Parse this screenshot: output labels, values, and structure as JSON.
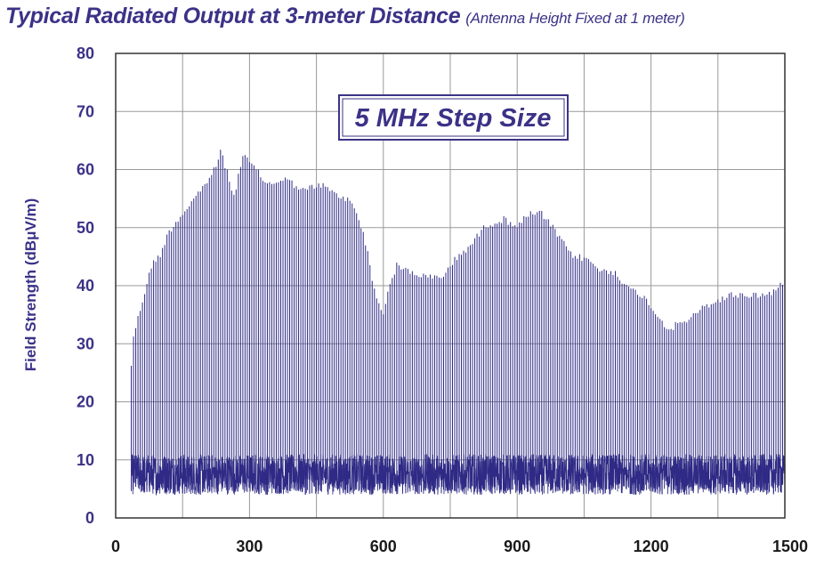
{
  "chart_data": {
    "type": "bar",
    "title": "Typical Radiated Output at 3-meter Distance",
    "subtitle": "(Antenna Height Fixed at 1 meter)",
    "xlabel": "",
    "ylabel": "Field Strength (dBμV/m)",
    "xlim": [
      0,
      1500
    ],
    "ylim": [
      0,
      80
    ],
    "x_ticks": [
      0,
      300,
      600,
      900,
      1200,
      1500
    ],
    "y_ticks": [
      0,
      10,
      20,
      30,
      40,
      50,
      60,
      70,
      80
    ],
    "grid": true,
    "annotation": "5 MHz Step Size",
    "step_size_mhz": 5,
    "x_start": 35,
    "x_end": 1500,
    "series_color": "#2e2a85",
    "noise_floor_range": [
      4,
      11
    ],
    "envelope_peaks": [
      {
        "x": 35,
        "y": 27
      },
      {
        "x": 40,
        "y": 32
      },
      {
        "x": 50,
        "y": 35
      },
      {
        "x": 60,
        "y": 38
      },
      {
        "x": 70,
        "y": 41
      },
      {
        "x": 80,
        "y": 44
      },
      {
        "x": 100,
        "y": 46
      },
      {
        "x": 120,
        "y": 50
      },
      {
        "x": 150,
        "y": 53
      },
      {
        "x": 180,
        "y": 56
      },
      {
        "x": 200,
        "y": 58
      },
      {
        "x": 225,
        "y": 61
      },
      {
        "x": 235,
        "y": 64
      },
      {
        "x": 250,
        "y": 60
      },
      {
        "x": 265,
        "y": 56
      },
      {
        "x": 285,
        "y": 63
      },
      {
        "x": 310,
        "y": 61
      },
      {
        "x": 340,
        "y": 58
      },
      {
        "x": 380,
        "y": 59
      },
      {
        "x": 420,
        "y": 57
      },
      {
        "x": 460,
        "y": 58
      },
      {
        "x": 500,
        "y": 56
      },
      {
        "x": 530,
        "y": 55
      },
      {
        "x": 555,
        "y": 50
      },
      {
        "x": 570,
        "y": 44
      },
      {
        "x": 585,
        "y": 38
      },
      {
        "x": 600,
        "y": 36
      },
      {
        "x": 615,
        "y": 41
      },
      {
        "x": 630,
        "y": 44
      },
      {
        "x": 660,
        "y": 43
      },
      {
        "x": 700,
        "y": 42
      },
      {
        "x": 730,
        "y": 42
      },
      {
        "x": 760,
        "y": 45
      },
      {
        "x": 800,
        "y": 48
      },
      {
        "x": 830,
        "y": 51
      },
      {
        "x": 870,
        "y": 52
      },
      {
        "x": 900,
        "y": 51
      },
      {
        "x": 930,
        "y": 53
      },
      {
        "x": 955,
        "y": 53
      },
      {
        "x": 985,
        "y": 50
      },
      {
        "x": 1020,
        "y": 46
      },
      {
        "x": 1060,
        "y": 45
      },
      {
        "x": 1090,
        "y": 43
      },
      {
        "x": 1120,
        "y": 43
      },
      {
        "x": 1150,
        "y": 40
      },
      {
        "x": 1180,
        "y": 39
      },
      {
        "x": 1210,
        "y": 36
      },
      {
        "x": 1240,
        "y": 33
      },
      {
        "x": 1260,
        "y": 34
      },
      {
        "x": 1290,
        "y": 35
      },
      {
        "x": 1320,
        "y": 37
      },
      {
        "x": 1350,
        "y": 38
      },
      {
        "x": 1380,
        "y": 39
      },
      {
        "x": 1420,
        "y": 39
      },
      {
        "x": 1460,
        "y": 39
      },
      {
        "x": 1500,
        "y": 41
      }
    ]
  }
}
